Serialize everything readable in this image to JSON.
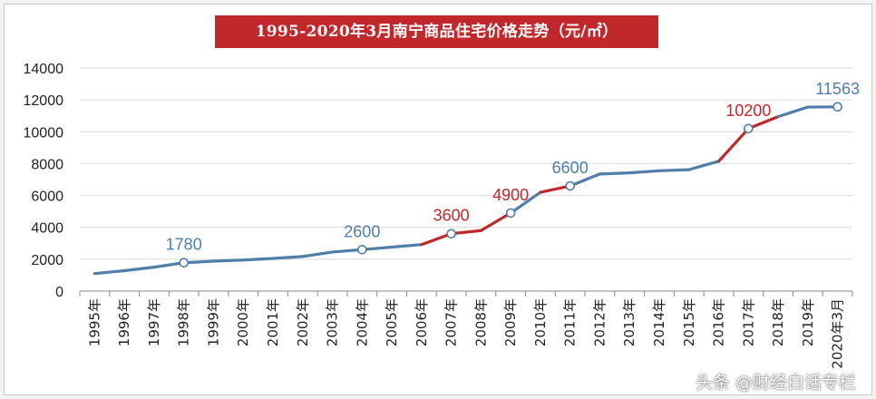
{
  "chart_data": {
    "type": "line",
    "title": "1995-2020年3月南宁商品住宅价格走势（元/㎡）",
    "x": [
      "1995年",
      "1996年",
      "1997年",
      "1998年",
      "1999年",
      "2000年",
      "2001年",
      "2002年",
      "2003年",
      "2004年",
      "2005年",
      "2006年",
      "2007年",
      "2008年",
      "2009年",
      "2010年",
      "2011年",
      "2012年",
      "2013年",
      "2014年",
      "2015年",
      "2016年",
      "2017年",
      "2018年",
      "2019年",
      "2020年3月"
    ],
    "values": [
      1100,
      1280,
      1500,
      1780,
      1880,
      1950,
      2050,
      2170,
      2450,
      2600,
      2760,
      2920,
      3600,
      3800,
      4900,
      6200,
      6600,
      7350,
      7420,
      7550,
      7620,
      8150,
      10200,
      10950,
      11550,
      11563
    ],
    "ylim": [
      0,
      14000
    ],
    "yticks": [
      0,
      2000,
      4000,
      6000,
      8000,
      10000,
      12000,
      14000
    ],
    "grid": true,
    "highlighted_points": [
      {
        "index": 3,
        "label": "1780",
        "color": "#4f7ea8"
      },
      {
        "index": 9,
        "label": "2600",
        "color": "#4f7ea8"
      },
      {
        "index": 12,
        "label": "3600",
        "color": "#c0282c"
      },
      {
        "index": 14,
        "label": "4900",
        "color": "#c0282c"
      },
      {
        "index": 16,
        "label": "6600",
        "color": "#4f7ea8"
      },
      {
        "index": 22,
        "label": "10200",
        "color": "#c0282c"
      },
      {
        "index": 25,
        "label": "11563",
        "color": "#4f7ea8"
      }
    ],
    "red_segments": [
      [
        11,
        14
      ],
      [
        15,
        16
      ],
      [
        21,
        23
      ]
    ],
    "colors": {
      "line": "#4f7ea8",
      "surge": "#c0282c",
      "grid": "#d9d9d9"
    }
  },
  "watermark": {
    "credit": "头条 @财经白话专栏"
  }
}
